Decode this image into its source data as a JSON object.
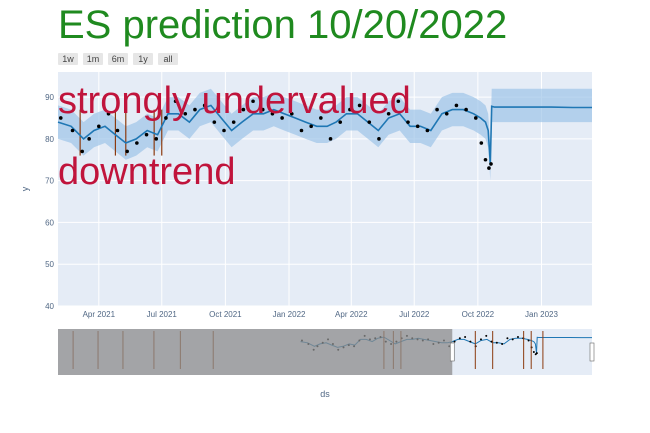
{
  "title": "ES prediction 10/20/2022",
  "range_buttons": [
    "1w",
    "1m",
    "6m",
    "1y",
    "all"
  ],
  "annotations": [
    "strongly undervalued",
    "downtrend"
  ],
  "colors": {
    "title": "#1f8a1f",
    "annotation": "#c0143c",
    "plot_bg": "#e5ecf6",
    "band": "#9ec5e8",
    "forecast_line": "#1f77b4",
    "points": "#000000",
    "vlines": "#8b3a0f",
    "slider_mask": "#8c8c8c"
  },
  "chart_data": {
    "type": "line",
    "title": "ES prediction 10/20/2022",
    "xlabel": "ds",
    "ylabel": "y",
    "ylim": [
      40,
      96
    ],
    "xlim": [
      "2021-02-01",
      "2023-03-15"
    ],
    "y_ticks": [
      40,
      50,
      60,
      70,
      80,
      90
    ],
    "x_ticks": [
      {
        "date": "2021-04-01",
        "label": "Apr 2021"
      },
      {
        "date": "2021-07-01",
        "label": "Jul 2021"
      },
      {
        "date": "2021-10-01",
        "label": "Oct 2021"
      },
      {
        "date": "2022-01-01",
        "label": "Jan 2022"
      },
      {
        "date": "2022-04-01",
        "label": "Apr 2022"
      },
      {
        "date": "2022-07-01",
        "label": "Jul 2022"
      },
      {
        "date": "2022-10-01",
        "label": "Oct 2022"
      },
      {
        "date": "2023-01-01",
        "label": "Jan 2023"
      }
    ],
    "series": [
      {
        "kind": "forecast",
        "x": [
          "2021-02-01",
          "2021-02-20",
          "2021-03-10",
          "2021-03-25",
          "2021-04-10",
          "2021-04-25",
          "2021-05-10",
          "2021-05-25",
          "2021-06-10",
          "2021-06-25",
          "2021-07-10",
          "2021-07-25",
          "2021-08-10",
          "2021-08-25",
          "2021-09-10",
          "2021-09-25",
          "2021-10-10",
          "2021-10-25",
          "2021-11-10",
          "2021-11-25",
          "2021-12-10",
          "2021-12-25",
          "2022-01-10",
          "2022-01-25",
          "2022-02-10",
          "2022-02-25",
          "2022-03-10",
          "2022-03-25",
          "2022-04-10",
          "2022-04-25",
          "2022-05-10",
          "2022-05-25",
          "2022-06-10",
          "2022-06-25",
          "2022-07-10",
          "2022-07-25",
          "2022-08-10",
          "2022-08-25",
          "2022-09-10",
          "2022-09-25",
          "2022-10-05",
          "2022-10-12",
          "2022-10-16",
          "2022-10-19",
          "2022-10-21",
          "2022-10-25",
          "2022-11-15",
          "2022-12-15",
          "2023-01-15",
          "2023-02-15",
          "2023-03-15"
        ],
        "y": [
          84,
          83,
          80,
          82,
          83,
          81,
          79,
          80,
          82,
          81,
          86,
          86,
          84,
          87,
          88,
          85,
          82,
          84,
          86,
          86,
          87,
          86,
          85,
          84,
          83,
          83,
          84,
          86,
          86,
          84,
          82,
          85,
          86,
          83,
          83,
          82,
          86,
          87,
          87,
          86,
          85,
          84,
          82,
          74,
          87.8,
          87.6,
          87.6,
          87.6,
          87.6,
          87.5,
          87.5
        ],
        "lower": [
          80,
          79,
          76,
          78,
          79,
          77,
          75,
          76,
          78,
          77,
          82,
          82,
          80,
          83,
          84,
          81,
          78,
          80,
          82,
          82,
          83,
          82,
          81,
          80,
          79,
          79,
          80,
          82,
          82,
          80,
          78,
          81,
          82,
          79,
          79,
          78,
          82,
          83,
          83,
          82,
          81,
          80,
          78,
          70,
          84,
          84,
          84,
          84,
          84,
          84,
          84
        ],
        "upper": [
          88,
          87,
          84,
          86,
          87,
          85,
          83,
          84,
          86,
          85,
          90,
          90,
          88,
          91,
          92,
          89,
          86,
          88,
          90,
          90,
          91,
          90,
          89,
          88,
          87,
          87,
          88,
          90,
          90,
          88,
          86,
          89,
          90,
          87,
          87,
          86,
          90,
          91,
          91,
          90,
          89,
          88,
          86,
          78,
          92,
          92,
          92,
          92,
          92,
          92,
          92
        ]
      },
      {
        "kind": "observed",
        "x": [
          "2021-02-05",
          "2021-02-22",
          "2021-03-08",
          "2021-03-18",
          "2021-04-01",
          "2021-04-15",
          "2021-04-28",
          "2021-05-12",
          "2021-05-26",
          "2021-06-09",
          "2021-06-23",
          "2021-07-07",
          "2021-07-21",
          "2021-08-04",
          "2021-08-18",
          "2021-09-01",
          "2021-09-15",
          "2021-09-29",
          "2021-10-13",
          "2021-10-27",
          "2021-11-10",
          "2021-11-24",
          "2021-12-08",
          "2021-12-22",
          "2022-01-05",
          "2022-01-19",
          "2022-02-02",
          "2022-02-16",
          "2022-03-02",
          "2022-03-16",
          "2022-03-30",
          "2022-04-13",
          "2022-04-27",
          "2022-05-11",
          "2022-05-25",
          "2022-06-08",
          "2022-06-22",
          "2022-07-06",
          "2022-07-20",
          "2022-08-03",
          "2022-08-17",
          "2022-08-31",
          "2022-09-14",
          "2022-09-28",
          "2022-10-06",
          "2022-10-12",
          "2022-10-17",
          "2022-10-20"
        ],
        "y": [
          85,
          82,
          77,
          80,
          83,
          86,
          82,
          77,
          79,
          81,
          80,
          85,
          89,
          86,
          87,
          88,
          84,
          82,
          84,
          87,
          89,
          87,
          86,
          85,
          86,
          82,
          83,
          85,
          80,
          84,
          87,
          88,
          84,
          80,
          86,
          89,
          84,
          83,
          82,
          87,
          86,
          88,
          87,
          85,
          79,
          75,
          73,
          74
        ]
      }
    ],
    "vlines": [
      "2021-03-05",
      "2021-04-25",
      "2021-05-10",
      "2021-06-20",
      "2021-07-01"
    ],
    "range_slider": {
      "selected": [
        "2022-03-10",
        "2023-03-15"
      ],
      "vlines": [
        "2019-06-10",
        "2019-08-15",
        "2019-10-20",
        "2020-01-10",
        "2020-03-20",
        "2020-06-15",
        "2021-09-10",
        "2021-10-05",
        "2021-10-25",
        "2022-05-10",
        "2022-06-25",
        "2022-09-15",
        "2022-10-05",
        "2022-11-05"
      ]
    }
  }
}
